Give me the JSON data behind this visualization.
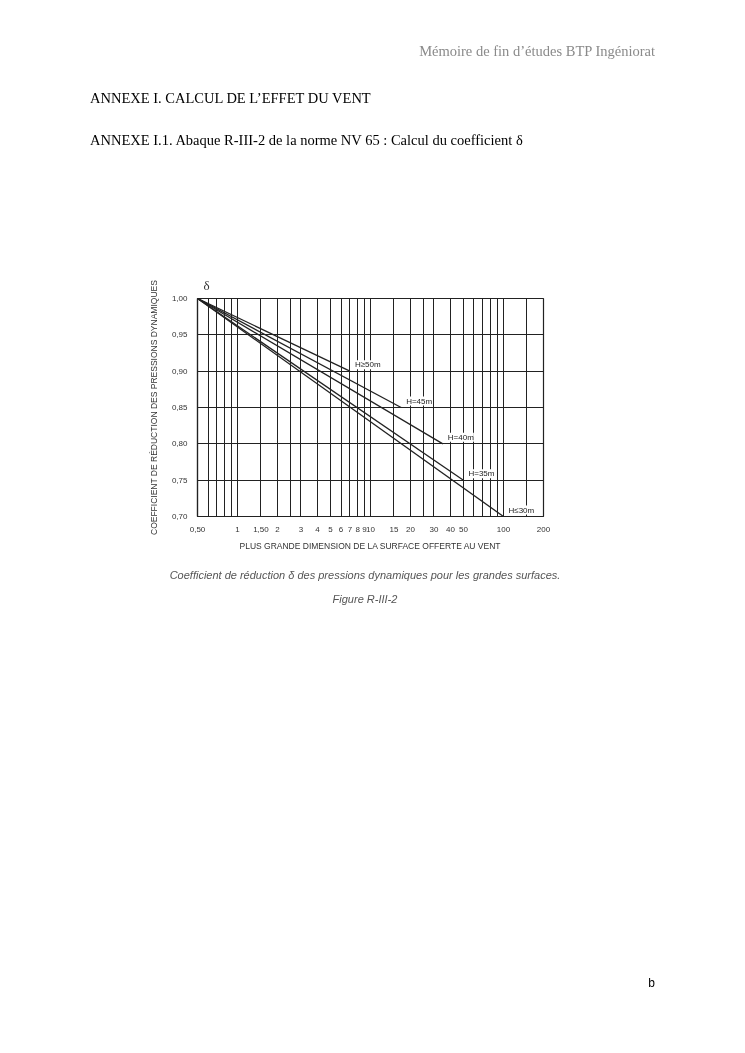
{
  "chart_data": {
    "type": "line",
    "title": "ANNEXE I. CALCUL DE L’EFFET DU VENT",
    "subtitle": "ANNEXE I.1. Abaque R-III-2 de la norme NV 65 : Calcul du coefficient δ",
    "xlabel": "PLUS GRANDE DIMENSION DE LA SURFACE OFFERTE AU VENT",
    "ylabel": "COEFFICIENT DE RÉDUCTION DES PRESSIONS DYNAMIQUES",
    "annotations": [
      "Mémoire de fin d’études BTP Ingéniorat",
      "δ",
      "Coefficient de réduction δ des pressions dynamiques pour les grandes surfaces.",
      "Figure R-III-2",
      "b"
    ],
    "series": [
      {
        "name": "H≥50m",
        "color": "#222222",
        "x": [
          0.5,
          7
        ],
        "values": [
          1.0,
          0.9
        ]
      },
      {
        "name": "H=45m",
        "color": "#222222",
        "x": [
          0.5,
          17
        ],
        "values": [
          1.0,
          0.85
        ]
      },
      {
        "name": "H=40m",
        "color": "#222222",
        "x": [
          0.5,
          35
        ],
        "values": [
          1.0,
          0.8
        ]
      },
      {
        "name": "H=35m",
        "color": "#222222",
        "x": [
          0.5,
          50
        ],
        "values": [
          1.0,
          0.75
        ]
      },
      {
        "name": "H≤30m",
        "color": "#222222",
        "x": [
          0.5,
          100
        ],
        "values": [
          1.0,
          0.7
        ]
      }
    ],
    "xlim": [
      0.5,
      200
    ],
    "ylim": [
      0.7,
      1.0
    ],
    "xticks": [
      {
        "value": 0.5,
        "label": "0,50"
      },
      {
        "value": 0.6,
        "label": null
      },
      {
        "value": 0.7,
        "label": null
      },
      {
        "value": 0.8,
        "label": null
      },
      {
        "value": 0.9,
        "label": null
      },
      1,
      {
        "value": 1.5,
        "label": "1,50"
      },
      2,
      {
        "value": 2.5,
        "label": null
      },
      3,
      4,
      5,
      6,
      7,
      8,
      9,
      10,
      15,
      20,
      {
        "value": 25,
        "label": null
      },
      30,
      40,
      50,
      {
        "value": 60,
        "label": null
      },
      {
        "value": 70,
        "label": null
      },
      {
        "value": 80,
        "label": null
      },
      {
        "value": 90,
        "label": null
      },
      100,
      {
        "value": 150,
        "label": null
      },
      200
    ],
    "yticks": [
      {
        "value": 0.7,
        "label": "0,70"
      },
      {
        "value": 0.75,
        "label": "0,75"
      },
      {
        "value": 0.8,
        "label": "0,80"
      },
      {
        "value": 0.85,
        "label": "0,85"
      },
      {
        "value": 0.9,
        "label": "0,90"
      },
      {
        "value": 0.95,
        "label": "0,95"
      },
      {
        "value": 1.0,
        "label": "1,00"
      }
    ],
    "log": "x",
    "grid": true,
    "line_style": "solid"
  }
}
